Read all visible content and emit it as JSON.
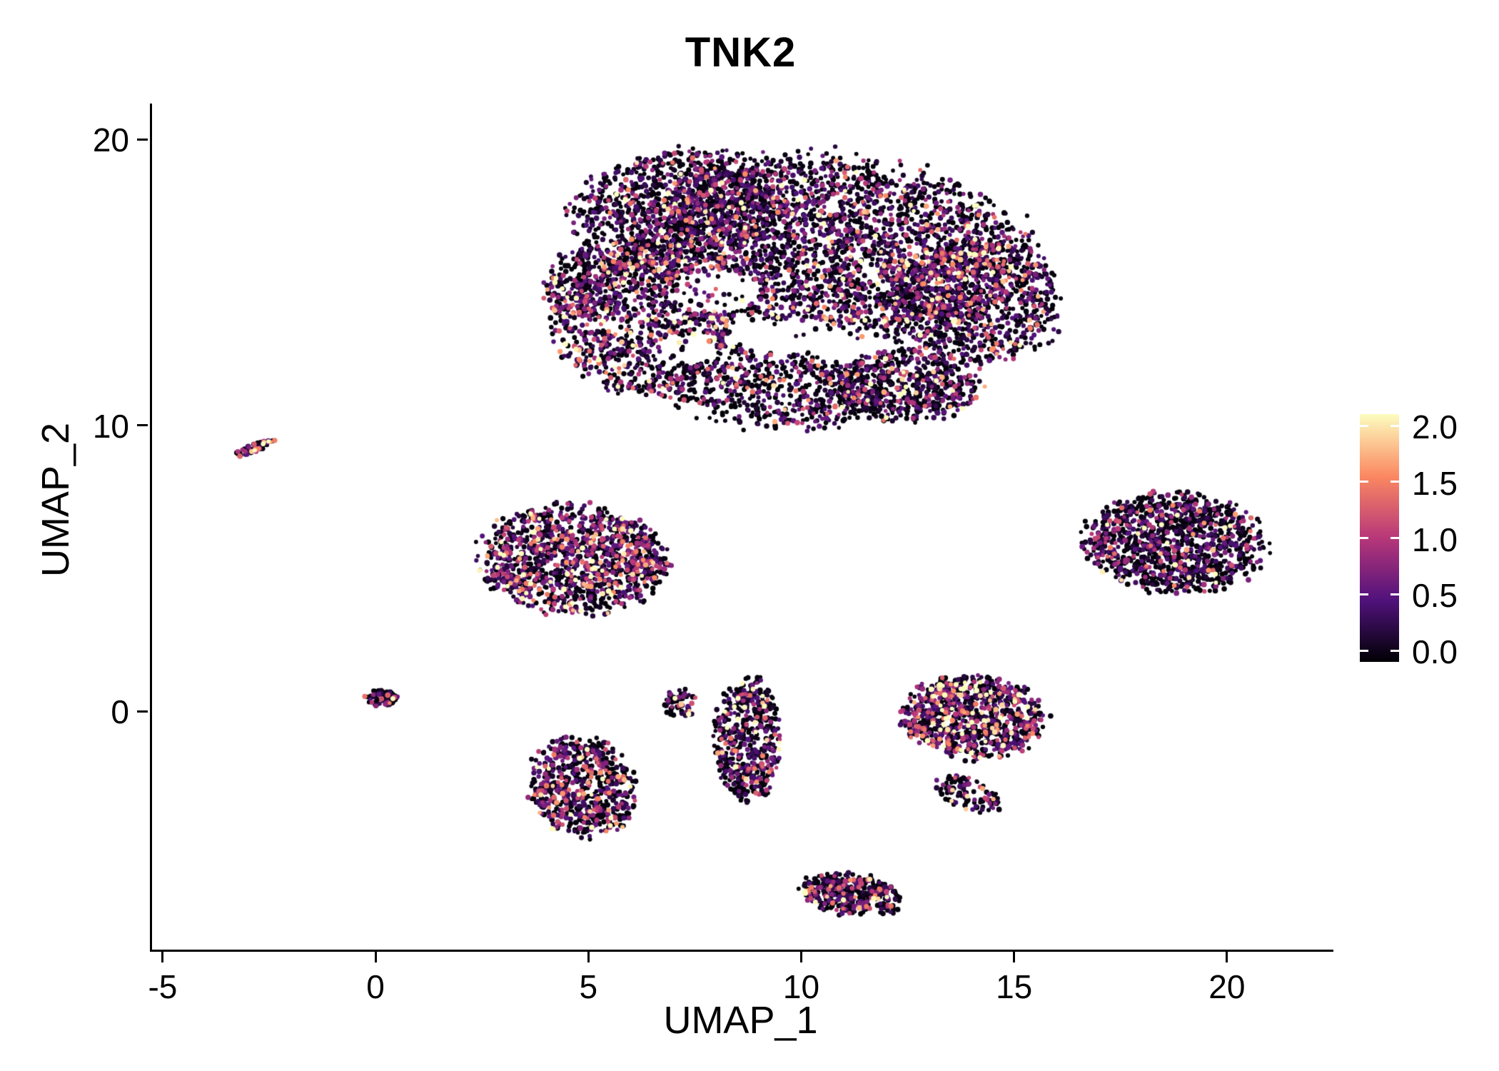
{
  "chart_data": {
    "type": "scatter",
    "title": "TNK2",
    "xlabel": "UMAP_1",
    "ylabel": "UMAP_2",
    "xlim": [
      -5.3,
      22.45
    ],
    "ylim": [
      -8.34,
      21.25
    ],
    "xticks": [
      -5,
      0,
      5,
      10,
      15,
      20
    ],
    "yticks": [
      0,
      10,
      20
    ],
    "grid": false,
    "legend_position": "right",
    "point_radius_px": 3.4,
    "seed": 42,
    "background": "#ffffff",
    "colorbar": {
      "min": 0.0,
      "max": 2.0,
      "colormap": "magma",
      "ticks": [
        {
          "label": "2.0",
          "value": 2.0
        },
        {
          "label": "1.5",
          "value": 1.5
        },
        {
          "label": "1.0",
          "value": 1.0
        },
        {
          "label": "0.5",
          "value": 0.5
        },
        {
          "label": "0.0",
          "value": 0.0
        }
      ]
    },
    "colormap_stops": [
      [
        0.0,
        "#000004"
      ],
      [
        0.25,
        "#51127c"
      ],
      [
        0.5,
        "#b73779"
      ],
      [
        0.75,
        "#fb8861"
      ],
      [
        1.0,
        "#fcfdbf"
      ]
    ],
    "clusters": [
      {
        "name": "main-top-core",
        "cx": 10.6,
        "cy": 16.3,
        "rx": 4.6,
        "ry": 3.0,
        "rot": -10,
        "n": 3000,
        "p0": 0.4,
        "scale": 0.55
      },
      {
        "name": "main-top-upper-left",
        "cx": 7.0,
        "cy": 17.6,
        "rx": 2.4,
        "ry": 1.9,
        "rot": 20,
        "n": 900,
        "p0": 0.42,
        "scale": 0.5
      },
      {
        "name": "main-left-lobe",
        "cx": 6.2,
        "cy": 13.6,
        "rx": 2.0,
        "ry": 2.4,
        "rot": 0,
        "n": 950,
        "p0": 0.33,
        "scale": 0.65
      },
      {
        "name": "main-lower-lobe",
        "cx": 8.9,
        "cy": 11.4,
        "rx": 2.6,
        "ry": 1.4,
        "rot": -15,
        "n": 650,
        "p0": 0.5,
        "scale": 0.5
      },
      {
        "name": "main-lower-right-lobe",
        "cx": 12.4,
        "cy": 11.4,
        "rx": 1.7,
        "ry": 1.2,
        "rot": 0,
        "n": 620,
        "p0": 0.42,
        "scale": 0.55
      },
      {
        "name": "main-right-lobe",
        "cx": 14.0,
        "cy": 14.3,
        "rx": 2.0,
        "ry": 2.1,
        "rot": 0,
        "n": 900,
        "p0": 0.4,
        "scale": 0.55
      },
      {
        "name": "main-left-tip",
        "cx": 4.9,
        "cy": 15.0,
        "rx": 1.0,
        "ry": 1.2,
        "rot": 0,
        "n": 240,
        "p0": 0.38,
        "scale": 0.55
      },
      {
        "name": "small-streak",
        "cx": -2.9,
        "cy": 9.2,
        "rx": 0.5,
        "ry": 0.14,
        "rot": 30,
        "n": 70,
        "p0": 0.45,
        "scale": 0.7
      },
      {
        "name": "mid-left-cluster",
        "cx": 4.6,
        "cy": 5.3,
        "rx": 2.1,
        "ry": 1.8,
        "rot": -10,
        "n": 1250,
        "p0": 0.33,
        "scale": 0.68
      },
      {
        "name": "tiny-origin-cluster",
        "cx": 0.1,
        "cy": 0.45,
        "rx": 0.4,
        "ry": 0.28,
        "rot": 0,
        "n": 80,
        "p0": 0.55,
        "scale": 0.5
      },
      {
        "name": "lower-left-cluster",
        "cx": 4.8,
        "cy": -2.7,
        "rx": 1.2,
        "ry": 1.7,
        "rot": 10,
        "n": 640,
        "p0": 0.42,
        "scale": 0.62
      },
      {
        "name": "tiny-mid-cluster",
        "cx": 7.1,
        "cy": 0.3,
        "rx": 0.35,
        "ry": 0.55,
        "rot": 0,
        "n": 60,
        "p0": 0.45,
        "scale": 0.6
      },
      {
        "name": "vertical-cluster",
        "cx": 8.7,
        "cy": -1.0,
        "rx": 0.75,
        "ry": 2.1,
        "rot": 0,
        "n": 540,
        "p0": 0.42,
        "scale": 0.58
      },
      {
        "name": "right-mid-cluster",
        "cx": 14.0,
        "cy": -0.2,
        "rx": 1.6,
        "ry": 1.4,
        "rot": 0,
        "n": 930,
        "p0": 0.32,
        "scale": 0.72
      },
      {
        "name": "right-mid-tail",
        "cx": 13.9,
        "cy": -2.9,
        "rx": 0.8,
        "ry": 0.5,
        "rot": -35,
        "n": 110,
        "p0": 0.45,
        "scale": 0.55
      },
      {
        "name": "bottom-cluster",
        "cx": 11.1,
        "cy": -6.4,
        "rx": 1.15,
        "ry": 0.7,
        "rot": -15,
        "n": 380,
        "p0": 0.42,
        "scale": 0.6
      },
      {
        "name": "right-cluster",
        "cx": 18.7,
        "cy": 5.9,
        "rx": 2.05,
        "ry": 1.65,
        "rot": -10,
        "n": 1150,
        "p0": 0.48,
        "scale": 0.5
      }
    ],
    "holes": [
      {
        "cx": 7.9,
        "cy": 14.7,
        "rx": 1.1,
        "ry": 0.7
      },
      {
        "cx": 9.6,
        "cy": 13.1,
        "rx": 1.3,
        "ry": 0.6
      },
      {
        "cx": 7.2,
        "cy": 12.6,
        "rx": 0.8,
        "ry": 0.5
      }
    ]
  }
}
